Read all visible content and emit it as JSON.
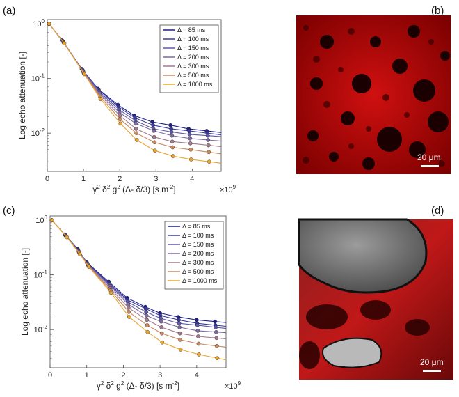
{
  "panels": {
    "a": "(a)",
    "b": "(b)",
    "c": "(c)",
    "d": "(d)"
  },
  "colors": [
    "#1f1f8c",
    "#3a3a9e",
    "#5d58a8",
    "#7f6aa0",
    "#a2788e",
    "#c98a62",
    "#e7a632"
  ],
  "micrographs": {
    "b": {
      "scale_bar": "20 μm"
    },
    "d": {
      "scale_bar": "20 μm"
    }
  },
  "chart_data": [
    {
      "type": "scatter",
      "panel": "a",
      "ylabel": "Log echo attenuation [-]",
      "xlabel_parts": [
        "γ",
        "2",
        " δ",
        "2",
        " g",
        "2",
        " (Δ- δ/3) [s m",
        "-2",
        "]"
      ],
      "x_multiplier": [
        "×10",
        "9"
      ],
      "xlim": [
        0,
        4.8
      ],
      "ylim": [
        0.002,
        1.2
      ],
      "yscale": "log",
      "x_ticks": [
        0,
        1,
        2,
        3,
        4
      ],
      "y_ticks": [
        {
          "base": "10",
          "exp": "0",
          "v": 1
        },
        {
          "base": "10",
          "exp": "-1",
          "v": 0.1
        },
        {
          "base": "10",
          "exp": "-2",
          "v": 0.01
        }
      ],
      "legend_position": "top-right",
      "series": [
        {
          "name": "Δ = 85 ms",
          "x": [
            0.05,
            0.4,
            0.95,
            1.4,
            1.95,
            2.4,
            2.9,
            3.4,
            3.9,
            4.4
          ],
          "y": [
            1.0,
            0.5,
            0.15,
            0.065,
            0.033,
            0.021,
            0.016,
            0.014,
            0.012,
            0.011
          ]
        },
        {
          "name": "Δ = 100 ms",
          "x": [
            0.05,
            0.42,
            0.97,
            1.42,
            1.97,
            2.42,
            2.92,
            3.42,
            3.92,
            4.42
          ],
          "y": [
            1.0,
            0.49,
            0.145,
            0.062,
            0.03,
            0.019,
            0.014,
            0.012,
            0.011,
            0.01
          ]
        },
        {
          "name": "Δ = 150 ms",
          "x": [
            0.05,
            0.43,
            0.98,
            1.43,
            1.98,
            2.43,
            2.93,
            3.43,
            3.93,
            4.43
          ],
          "y": [
            1.0,
            0.48,
            0.14,
            0.058,
            0.027,
            0.017,
            0.012,
            0.0105,
            0.0095,
            0.009
          ]
        },
        {
          "name": "Δ = 200 ms",
          "x": [
            0.05,
            0.44,
            0.99,
            1.44,
            1.99,
            2.44,
            2.94,
            3.44,
            3.94,
            4.44
          ],
          "y": [
            1.0,
            0.47,
            0.135,
            0.054,
            0.024,
            0.015,
            0.011,
            0.009,
            0.008,
            0.0075
          ]
        },
        {
          "name": "Δ = 300 ms",
          "x": [
            0.05,
            0.45,
            1.0,
            1.45,
            2.0,
            2.45,
            2.95,
            3.45,
            3.95,
            4.45
          ],
          "y": [
            1.0,
            0.46,
            0.13,
            0.05,
            0.021,
            0.012,
            0.0085,
            0.007,
            0.0065,
            0.006
          ]
        },
        {
          "name": "Δ = 500 ms",
          "x": [
            0.05,
            0.46,
            1.01,
            1.46,
            2.01,
            2.46,
            2.96,
            3.46,
            3.96,
            4.46
          ],
          "y": [
            1.0,
            0.45,
            0.125,
            0.046,
            0.018,
            0.01,
            0.0068,
            0.0055,
            0.005,
            0.0045
          ]
        },
        {
          "name": "Δ = 1000 ms",
          "x": [
            0.05,
            0.47,
            1.02,
            1.47,
            2.02,
            2.47,
            2.97,
            3.47,
            3.97,
            4.47
          ],
          "y": [
            1.0,
            0.44,
            0.12,
            0.042,
            0.015,
            0.0075,
            0.0048,
            0.0038,
            0.0033,
            0.003
          ]
        }
      ]
    },
    {
      "type": "scatter",
      "panel": "c",
      "ylabel": "Log echo attenuation [-]",
      "xlabel_parts": [
        "γ",
        "2",
        " δ",
        "2",
        " g",
        "2",
        " (Δ- δ/3) [s m",
        "-2",
        "]"
      ],
      "x_multiplier": [
        "×10",
        "9"
      ],
      "xlim": [
        0,
        4.8
      ],
      "ylim": [
        0.002,
        1.2
      ],
      "yscale": "log",
      "x_ticks": [
        0,
        1,
        2,
        3,
        4
      ],
      "y_ticks": [
        {
          "base": "10",
          "exp": "0",
          "v": 1
        },
        {
          "base": "10",
          "exp": "-1",
          "v": 0.1
        },
        {
          "base": "10",
          "exp": "-2",
          "v": 0.01
        }
      ],
      "legend_position": "top-right",
      "series": [
        {
          "name": "Δ = 85 ms",
          "x": [
            0.05,
            0.4,
            0.75,
            1.0,
            1.6,
            2.1,
            2.6,
            3.0,
            3.5,
            4.0,
            4.5
          ],
          "y": [
            1.0,
            0.55,
            0.3,
            0.17,
            0.075,
            0.038,
            0.026,
            0.02,
            0.017,
            0.015,
            0.014
          ]
        },
        {
          "name": "Δ = 100 ms",
          "x": [
            0.05,
            0.41,
            0.76,
            1.01,
            1.61,
            2.11,
            2.61,
            3.01,
            3.51,
            4.01,
            4.51
          ],
          "y": [
            1.0,
            0.54,
            0.29,
            0.165,
            0.07,
            0.035,
            0.024,
            0.018,
            0.015,
            0.013,
            0.012
          ]
        },
        {
          "name": "Δ = 150 ms",
          "x": [
            0.05,
            0.42,
            0.77,
            1.02,
            1.62,
            2.12,
            2.62,
            3.02,
            3.52,
            4.02,
            4.52
          ],
          "y": [
            1.0,
            0.53,
            0.28,
            0.16,
            0.066,
            0.032,
            0.021,
            0.016,
            0.013,
            0.012,
            0.011
          ]
        },
        {
          "name": "Δ = 200 ms",
          "x": [
            0.05,
            0.43,
            0.78,
            1.03,
            1.63,
            2.13,
            2.63,
            3.03,
            3.53,
            4.03,
            4.53
          ],
          "y": [
            1.0,
            0.52,
            0.27,
            0.155,
            0.062,
            0.029,
            0.018,
            0.014,
            0.011,
            0.0095,
            0.009
          ]
        },
        {
          "name": "Δ = 300 ms",
          "x": [
            0.05,
            0.44,
            0.79,
            1.04,
            1.64,
            2.14,
            2.64,
            3.04,
            3.54,
            4.04,
            4.54
          ],
          "y": [
            1.0,
            0.51,
            0.26,
            0.15,
            0.057,
            0.025,
            0.015,
            0.011,
            0.0085,
            0.0075,
            0.007
          ]
        },
        {
          "name": "Δ = 500 ms",
          "x": [
            0.05,
            0.45,
            0.8,
            1.05,
            1.65,
            2.15,
            2.65,
            3.05,
            3.55,
            4.05,
            4.55
          ],
          "y": [
            1.0,
            0.5,
            0.25,
            0.145,
            0.052,
            0.021,
            0.012,
            0.0085,
            0.0065,
            0.0055,
            0.005
          ]
        },
        {
          "name": "Δ = 1000 ms",
          "x": [
            0.05,
            0.46,
            0.81,
            1.06,
            1.66,
            2.16,
            2.66,
            3.06,
            3.56,
            4.06,
            4.56
          ],
          "y": [
            1.0,
            0.49,
            0.24,
            0.14,
            0.047,
            0.017,
            0.009,
            0.0058,
            0.0043,
            0.0035,
            0.003
          ]
        }
      ]
    }
  ]
}
